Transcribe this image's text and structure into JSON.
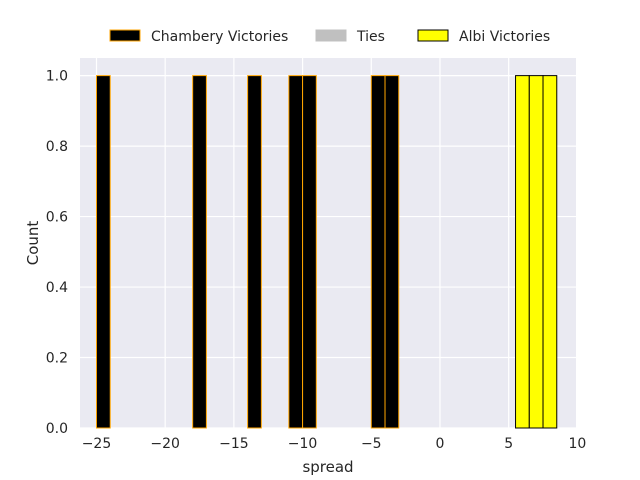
{
  "chart_data": {
    "type": "bar",
    "xlabel": "spread",
    "ylabel": "Count",
    "xlim": [
      -26.2,
      9.9
    ],
    "ylim": [
      0,
      1.05
    ],
    "x_ticks": [
      -25,
      -20,
      -15,
      -10,
      -5,
      0,
      5,
      10
    ],
    "y_ticks": [
      0.0,
      0.2,
      0.4,
      0.6,
      0.8,
      1.0
    ],
    "x_tick_labels": [
      "−25",
      "−20",
      "−15",
      "−10",
      "−5",
      "0",
      "5",
      "10"
    ],
    "y_tick_labels": [
      "0.0",
      "0.2",
      "0.4",
      "0.6",
      "0.8",
      "1.0"
    ],
    "grid": true,
    "legend_position": "top-center",
    "bin_width": 1,
    "series": [
      {
        "name": "Chambery Victories",
        "fill": "#000000",
        "edge": "#ffa500",
        "bins": [
          {
            "start": -25,
            "count": 1
          },
          {
            "start": -18,
            "count": 1
          },
          {
            "start": -14,
            "count": 1
          },
          {
            "start": -11,
            "count": 1
          },
          {
            "start": -10,
            "count": 1
          },
          {
            "start": -5,
            "count": 1
          },
          {
            "start": -4,
            "count": 1
          }
        ]
      },
      {
        "name": "Ties",
        "fill": "#c0c0c0",
        "edge": "#c0c0c0",
        "bins": []
      },
      {
        "name": "Albi Victories",
        "fill": "#ffff00",
        "edge": "#000000",
        "bins": [
          {
            "start": 5.5,
            "count": 1
          },
          {
            "start": 6.5,
            "count": 1
          },
          {
            "start": 7.5,
            "count": 1
          }
        ]
      }
    ]
  }
}
